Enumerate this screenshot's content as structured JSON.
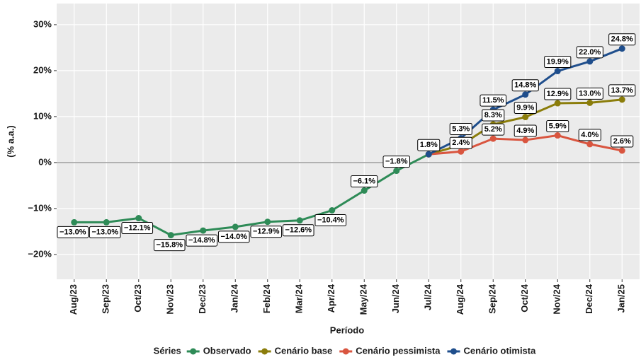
{
  "chart_data": {
    "type": "line",
    "xlabel": "Período",
    "ylabel": "(% a.a.)",
    "legend_title": "Séries",
    "legend": "bottom",
    "grid": true,
    "hline": 0,
    "categories": [
      "Aug/23",
      "Sep/23",
      "Oct/23",
      "Nov/23",
      "Dec/23",
      "Jan/24",
      "Feb/24",
      "Mar/24",
      "Apr/24",
      "May/24",
      "Jun/24",
      "Jul/24",
      "Aug/24",
      "Sep/24",
      "Oct/24",
      "Nov/24",
      "Dec/24",
      "Jan/25"
    ],
    "ylim": [
      -25.4,
      34.6
    ],
    "yticks": [
      {
        "value": -20,
        "label": "−20%"
      },
      {
        "value": -10,
        "label": "−10%"
      },
      {
        "value": 0,
        "label": "0%"
      },
      {
        "value": 10,
        "label": "10%"
      },
      {
        "value": 20,
        "label": "20%"
      },
      {
        "value": 30,
        "label": "30%"
      }
    ],
    "series": [
      {
        "name": "Observado",
        "color": "#2e8b57",
        "values": [
          -13.0,
          -13.0,
          -12.1,
          -15.8,
          -14.8,
          -14.0,
          -12.9,
          -12.6,
          -10.4,
          -6.1,
          -1.8,
          1.8,
          null,
          null,
          null,
          null,
          null,
          null
        ],
        "value_labels": [
          "−13.0%",
          "−13.0%",
          "−12.1%",
          "−15.8%",
          "−14.8%",
          "−14.0%",
          "−12.9%",
          "−12.6%",
          "−10.4%",
          "−6.1%",
          "−1.8%",
          "1.8%",
          null,
          null,
          null,
          null,
          null,
          null
        ]
      },
      {
        "name": "Cenário base",
        "color": "#8b7d0b",
        "values": [
          null,
          null,
          null,
          null,
          null,
          null,
          null,
          null,
          null,
          null,
          null,
          1.8,
          3.8,
          8.3,
          9.9,
          12.9,
          13.0,
          13.7
        ],
        "value_labels": [
          null,
          null,
          null,
          null,
          null,
          null,
          null,
          null,
          null,
          null,
          null,
          null,
          null,
          "8.3%",
          "9.9%",
          "12.9%",
          "13.0%",
          "13.7%"
        ]
      },
      {
        "name": "Cenário pessimista",
        "color": "#d9553f",
        "values": [
          null,
          null,
          null,
          null,
          null,
          null,
          null,
          null,
          null,
          null,
          null,
          1.8,
          2.4,
          5.2,
          4.9,
          5.9,
          4.0,
          2.6
        ],
        "value_labels": [
          null,
          null,
          null,
          null,
          null,
          null,
          null,
          null,
          null,
          null,
          null,
          null,
          "2.4%",
          "5.2%",
          "4.9%",
          "5.9%",
          "4.0%",
          "2.6%"
        ]
      },
      {
        "name": "Cenário otimista",
        "color": "#1f4e8c",
        "values": [
          null,
          null,
          null,
          null,
          null,
          null,
          null,
          null,
          null,
          null,
          null,
          1.8,
          5.3,
          11.5,
          14.8,
          19.9,
          22.0,
          24.8
        ],
        "value_labels": [
          null,
          null,
          null,
          null,
          null,
          null,
          null,
          null,
          null,
          null,
          null,
          null,
          "5.3%",
          "11.5%",
          "14.8%",
          "19.9%",
          "22.0%",
          "24.8%"
        ]
      }
    ]
  }
}
